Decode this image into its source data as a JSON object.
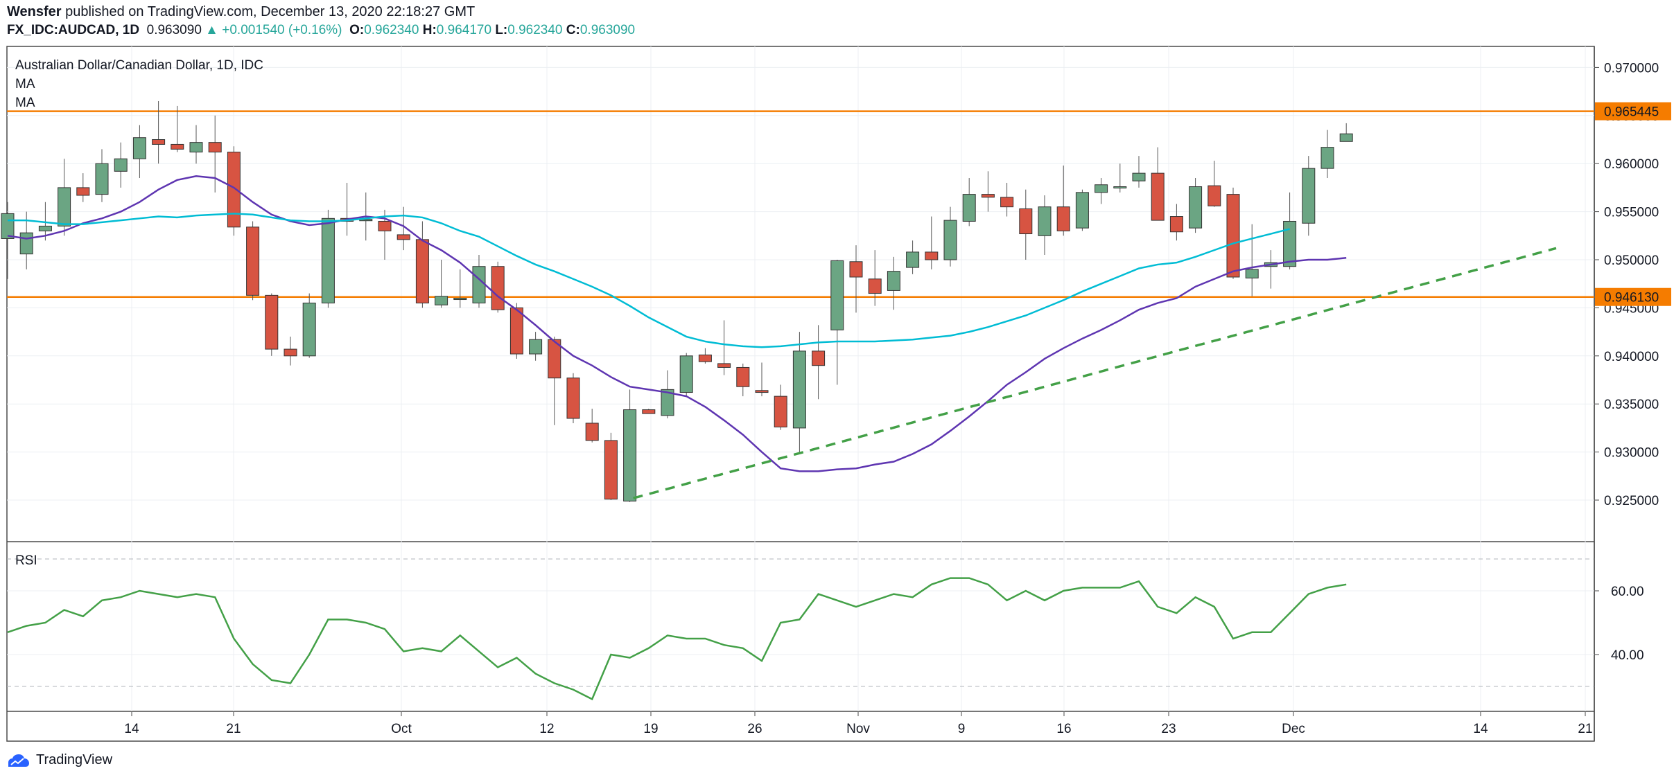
{
  "header": {
    "author": "Wensfer",
    "published_text": "published on TradingView.com, December 13, 2020 22:18:27 GMT",
    "symbol": "FX_IDC:AUDCAD, 1D",
    "last": "0.963090",
    "change_arrow": "▲",
    "change": "+0.001540 (+0.16%)",
    "o_label": "O:",
    "o": "0.962340",
    "h_label": "H:",
    "h": "0.964170",
    "l_label": "L:",
    "l": "0.962340",
    "c_label": "C:",
    "c": "0.963090"
  },
  "legend": {
    "title": "Australian Dollar/Canadian Dollar, 1D, IDC",
    "ma1": "MA",
    "ma2": "MA",
    "rsi": "RSI"
  },
  "footer": {
    "brand": "TradingView",
    "logo_icon": "tradingview-logo-icon"
  },
  "colors": {
    "up": "#26a69a",
    "up_body": "#6ba583",
    "down": "#d75442",
    "ma_fast": "#5e35b1",
    "ma_slow": "#00bcd4",
    "level": "#f57c00",
    "trend": "#43a047",
    "rsi": "#43a047"
  },
  "chart_data": [
    {
      "type": "candlestick",
      "title": "Australian Dollar/Canadian Dollar, 1D, IDC",
      "ylim": [
        0.921,
        0.9715
      ],
      "yticks": [
        "0.970000",
        "0.965000",
        "0.960000",
        "0.955000",
        "0.950000",
        "0.945000",
        "0.940000",
        "0.935000",
        "0.930000",
        "0.925000"
      ],
      "xticks": [
        "14",
        "21",
        "Oct",
        "12",
        "19",
        "26",
        "Nov",
        "9",
        "16",
        "23",
        "Dec",
        "14",
        "21"
      ],
      "candles": [
        {
          "o": 0.9522,
          "h": 0.956,
          "l": 0.948,
          "c": 0.9548
        },
        {
          "o": 0.9506,
          "h": 0.955,
          "l": 0.949,
          "c": 0.9528
        },
        {
          "o": 0.953,
          "h": 0.956,
          "l": 0.952,
          "c": 0.9535
        },
        {
          "o": 0.9535,
          "h": 0.9605,
          "l": 0.9525,
          "c": 0.9575
        },
        {
          "o": 0.9575,
          "h": 0.959,
          "l": 0.956,
          "c": 0.9567
        },
        {
          "o": 0.9568,
          "h": 0.9615,
          "l": 0.956,
          "c": 0.96
        },
        {
          "o": 0.9592,
          "h": 0.9622,
          "l": 0.9575,
          "c": 0.9605
        },
        {
          "o": 0.9605,
          "h": 0.964,
          "l": 0.9585,
          "c": 0.9627
        },
        {
          "o": 0.9625,
          "h": 0.9665,
          "l": 0.96,
          "c": 0.962
        },
        {
          "o": 0.962,
          "h": 0.966,
          "l": 0.9612,
          "c": 0.9615
        },
        {
          "o": 0.9612,
          "h": 0.964,
          "l": 0.96,
          "c": 0.9622
        },
        {
          "o": 0.9622,
          "h": 0.965,
          "l": 0.957,
          "c": 0.9612
        },
        {
          "o": 0.9612,
          "h": 0.9618,
          "l": 0.9525,
          "c": 0.9534
        },
        {
          "o": 0.9534,
          "h": 0.954,
          "l": 0.9458,
          "c": 0.9463
        },
        {
          "o": 0.9463,
          "h": 0.9465,
          "l": 0.94,
          "c": 0.9407
        },
        {
          "o": 0.9407,
          "h": 0.942,
          "l": 0.939,
          "c": 0.94
        },
        {
          "o": 0.94,
          "h": 0.9465,
          "l": 0.9398,
          "c": 0.9455
        },
        {
          "o": 0.9455,
          "h": 0.9552,
          "l": 0.945,
          "c": 0.9543
        },
        {
          "o": 0.9543,
          "h": 0.958,
          "l": 0.9525,
          "c": 0.954
        },
        {
          "o": 0.9541,
          "h": 0.957,
          "l": 0.952,
          "c": 0.9542
        },
        {
          "o": 0.954,
          "h": 0.9552,
          "l": 0.95,
          "c": 0.953
        },
        {
          "o": 0.9526,
          "h": 0.9555,
          "l": 0.951,
          "c": 0.9521
        },
        {
          "o": 0.9521,
          "h": 0.954,
          "l": 0.945,
          "c": 0.9455
        },
        {
          "o": 0.9453,
          "h": 0.95,
          "l": 0.945,
          "c": 0.9462
        },
        {
          "o": 0.9459,
          "h": 0.949,
          "l": 0.945,
          "c": 0.946
        },
        {
          "o": 0.9455,
          "h": 0.9505,
          "l": 0.945,
          "c": 0.9493
        },
        {
          "o": 0.9493,
          "h": 0.9498,
          "l": 0.9445,
          "c": 0.9448
        },
        {
          "o": 0.945,
          "h": 0.9455,
          "l": 0.9397,
          "c": 0.9402
        },
        {
          "o": 0.9402,
          "h": 0.9425,
          "l": 0.9395,
          "c": 0.9417
        },
        {
          "o": 0.9417,
          "h": 0.942,
          "l": 0.9328,
          "c": 0.9377
        },
        {
          "o": 0.9377,
          "h": 0.9382,
          "l": 0.933,
          "c": 0.9335
        },
        {
          "o": 0.933,
          "h": 0.9345,
          "l": 0.931,
          "c": 0.9312
        },
        {
          "o": 0.9312,
          "h": 0.932,
          "l": 0.925,
          "c": 0.9251
        },
        {
          "o": 0.9249,
          "h": 0.9365,
          "l": 0.9248,
          "c": 0.9344
        },
        {
          "o": 0.9344,
          "h": 0.9345,
          "l": 0.934,
          "c": 0.934
        },
        {
          "o": 0.9338,
          "h": 0.9385,
          "l": 0.9335,
          "c": 0.9365
        },
        {
          "o": 0.9362,
          "h": 0.9403,
          "l": 0.9358,
          "c": 0.94
        },
        {
          "o": 0.9401,
          "h": 0.9408,
          "l": 0.9392,
          "c": 0.9394
        },
        {
          "o": 0.9392,
          "h": 0.9437,
          "l": 0.938,
          "c": 0.9388
        },
        {
          "o": 0.9388,
          "h": 0.9392,
          "l": 0.9358,
          "c": 0.9368
        },
        {
          "o": 0.9364,
          "h": 0.9393,
          "l": 0.9358,
          "c": 0.9362
        },
        {
          "o": 0.9358,
          "h": 0.937,
          "l": 0.9323,
          "c": 0.9326
        },
        {
          "o": 0.9325,
          "h": 0.9425,
          "l": 0.93,
          "c": 0.9405
        },
        {
          "o": 0.9405,
          "h": 0.9432,
          "l": 0.9355,
          "c": 0.939
        },
        {
          "o": 0.9427,
          "h": 0.95,
          "l": 0.937,
          "c": 0.9499
        },
        {
          "o": 0.9498,
          "h": 0.9515,
          "l": 0.9445,
          "c": 0.9482
        },
        {
          "o": 0.948,
          "h": 0.951,
          "l": 0.9452,
          "c": 0.9465
        },
        {
          "o": 0.9468,
          "h": 0.9503,
          "l": 0.9448,
          "c": 0.9488
        },
        {
          "o": 0.9492,
          "h": 0.952,
          "l": 0.9485,
          "c": 0.9508
        },
        {
          "o": 0.9508,
          "h": 0.9545,
          "l": 0.949,
          "c": 0.95
        },
        {
          "o": 0.95,
          "h": 0.9555,
          "l": 0.9493,
          "c": 0.9541
        },
        {
          "o": 0.954,
          "h": 0.9585,
          "l": 0.9535,
          "c": 0.9568
        },
        {
          "o": 0.9568,
          "h": 0.9592,
          "l": 0.955,
          "c": 0.9565
        },
        {
          "o": 0.9565,
          "h": 0.958,
          "l": 0.9545,
          "c": 0.9555
        },
        {
          "o": 0.9553,
          "h": 0.9573,
          "l": 0.95,
          "c": 0.9527
        },
        {
          "o": 0.9525,
          "h": 0.9567,
          "l": 0.9505,
          "c": 0.9555
        },
        {
          "o": 0.9555,
          "h": 0.9598,
          "l": 0.9525,
          "c": 0.953
        },
        {
          "o": 0.9533,
          "h": 0.9573,
          "l": 0.953,
          "c": 0.957
        },
        {
          "o": 0.957,
          "h": 0.9585,
          "l": 0.9558,
          "c": 0.9578
        },
        {
          "o": 0.9576,
          "h": 0.96,
          "l": 0.957,
          "c": 0.9576
        },
        {
          "o": 0.9582,
          "h": 0.9608,
          "l": 0.9575,
          "c": 0.959
        },
        {
          "o": 0.959,
          "h": 0.9617,
          "l": 0.9542,
          "c": 0.9541
        },
        {
          "o": 0.9545,
          "h": 0.9558,
          "l": 0.952,
          "c": 0.9529
        },
        {
          "o": 0.9533,
          "h": 0.9585,
          "l": 0.9528,
          "c": 0.9576
        },
        {
          "o": 0.9577,
          "h": 0.9603,
          "l": 0.9555,
          "c": 0.9556
        },
        {
          "o": 0.9568,
          "h": 0.9575,
          "l": 0.948,
          "c": 0.9482
        },
        {
          "o": 0.9481,
          "h": 0.9537,
          "l": 0.9462,
          "c": 0.949
        },
        {
          "o": 0.9493,
          "h": 0.951,
          "l": 0.947,
          "c": 0.9497
        },
        {
          "o": 0.9493,
          "h": 0.957,
          "l": 0.949,
          "c": 0.954
        },
        {
          "o": 0.9538,
          "h": 0.9608,
          "l": 0.9525,
          "c": 0.9595
        },
        {
          "o": 0.9595,
          "h": 0.9635,
          "l": 0.9585,
          "c": 0.9617
        },
        {
          "o": 0.9623,
          "h": 0.9642,
          "l": 0.9623,
          "c": 0.9631
        }
      ],
      "series": [
        {
          "name": "MA",
          "values": [
            0.9525,
            0.9522,
            0.9525,
            0.953,
            0.9538,
            0.9543,
            0.955,
            0.956,
            0.9573,
            0.9583,
            0.9587,
            0.9585,
            0.9575,
            0.956,
            0.9547,
            0.954,
            0.9536,
            0.9538,
            0.9542,
            0.9545,
            0.9543,
            0.9535,
            0.952,
            0.951,
            0.9497,
            0.948,
            0.9462,
            0.9448,
            0.9432,
            0.9415,
            0.94,
            0.939,
            0.9378,
            0.9368,
            0.9365,
            0.9362,
            0.9358,
            0.9347,
            0.9333,
            0.9318,
            0.93,
            0.9283,
            0.928,
            0.928,
            0.9282,
            0.9283,
            0.9287,
            0.929,
            0.9298,
            0.9308,
            0.9322,
            0.9337,
            0.9353,
            0.937,
            0.9383,
            0.9397,
            0.9408,
            0.9418,
            0.9427,
            0.9437,
            0.9448,
            0.9455,
            0.946,
            0.9472,
            0.948,
            0.9488,
            0.9492,
            0.9495,
            0.9498,
            0.95,
            0.95,
            0.9502
          ]
        },
        {
          "name": "MA",
          "values": [
            0.9541,
            0.9541,
            0.9539,
            0.9537,
            0.9537,
            0.9539,
            0.9541,
            0.9543,
            0.9545,
            0.9544,
            0.9546,
            0.9547,
            0.9548,
            0.9547,
            0.9544,
            0.9541,
            0.954,
            0.954,
            0.9541,
            0.9543,
            0.9545,
            0.9546,
            0.9544,
            0.9538,
            0.953,
            0.9524,
            0.9514,
            0.9504,
            0.9495,
            0.9488,
            0.948,
            0.9472,
            0.9463,
            0.9452,
            0.944,
            0.943,
            0.942,
            0.9415,
            0.9412,
            0.941,
            0.9409,
            0.941,
            0.9412,
            0.9414,
            0.9415,
            0.9415,
            0.9415,
            0.9416,
            0.9417,
            0.9419,
            0.9421,
            0.9425,
            0.943,
            0.9436,
            0.9442,
            0.945,
            0.9458,
            0.9467,
            0.9475,
            0.9483,
            0.9491,
            0.9495,
            0.9497,
            0.9503,
            0.951,
            0.9517,
            0.9522,
            0.9527,
            0.9532
          ]
        }
      ],
      "levels": [
        0.965445,
        0.94613
      ],
      "level_labels": [
        "0.965445",
        "0.946130"
      ]
    },
    {
      "type": "line",
      "title": "RSI",
      "ylim": [
        27,
        76
      ],
      "yticks": [
        "60.00",
        "40.00"
      ],
      "bands": [
        70,
        30
      ],
      "values": [
        47,
        49,
        50,
        54,
        52,
        57,
        58,
        60,
        59,
        58,
        59,
        58,
        45,
        37,
        32,
        31,
        40,
        51,
        51,
        50,
        48,
        41,
        42,
        41,
        46,
        41,
        36,
        39,
        34,
        31,
        29,
        26,
        40,
        39,
        42,
        46,
        45,
        45,
        43,
        42,
        38,
        50,
        51,
        59,
        57,
        55,
        57,
        59,
        58,
        62,
        64,
        64,
        62,
        57,
        60,
        57,
        60,
        61,
        61,
        61,
        63,
        55,
        53,
        58,
        55,
        45,
        47,
        47,
        53,
        59,
        61,
        62
      ]
    }
  ]
}
